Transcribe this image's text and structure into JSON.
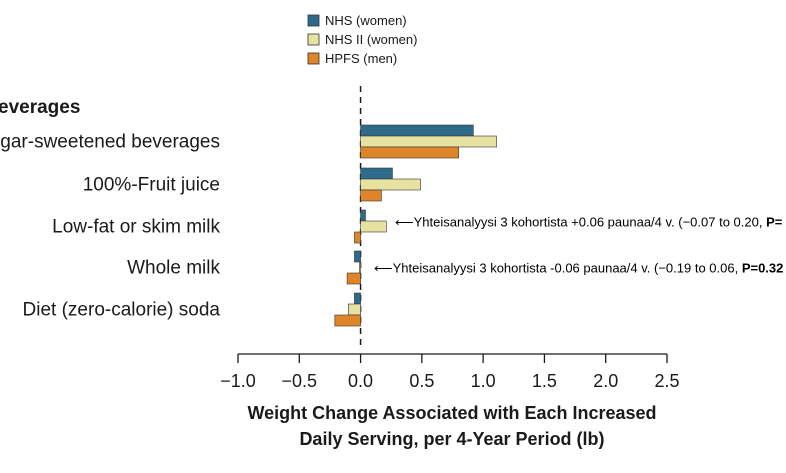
{
  "colors": {
    "nhs_women": "#2e6b8a",
    "nhs2_women": "#e8e2a2",
    "hpfs_men": "#e0842a",
    "axis": "#1a1a1a",
    "bar_stroke": "#333333"
  },
  "chart_data": {
    "type": "bar",
    "orientation": "horizontal",
    "section_label": "everages",
    "categories": [
      "ugar-sweetened beverages",
      "100%-Fruit juice",
      "Low-fat or skim milk",
      "Whole milk",
      "Diet (zero-calorie) soda"
    ],
    "series": [
      {
        "name": "NHS (women)",
        "color_key": "nhs_women",
        "values": [
          0.92,
          0.26,
          0.04,
          -0.05,
          -0.05
        ]
      },
      {
        "name": "NHS II (women)",
        "color_key": "nhs2_women",
        "values": [
          1.11,
          0.49,
          0.21,
          -0.01,
          -0.1
        ]
      },
      {
        "name": "HPFS (men)",
        "color_key": "hpfs_men",
        "values": [
          0.8,
          0.17,
          -0.05,
          -0.11,
          -0.21
        ]
      }
    ],
    "xlim": [
      -1.0,
      2.5
    ],
    "xticks": [
      "−1.0",
      "−0.5",
      "0.0",
      "0.5",
      "1.0",
      "1.5",
      "2.0",
      "2.5"
    ],
    "xlabel_lines": [
      "Weight Change Associated with Each Increased",
      "Daily Serving, per 4-Year Period (lb)"
    ],
    "legend_position": "top",
    "annotations": [
      {
        "category_index": 2,
        "text": "⟵Yhteisanalyysi 3 kohortista +0.06 paunaa/4 v. (−0.07 to 0.20, ",
        "bold_text": "P="
      },
      {
        "category_index": 3,
        "text": "⟵Yhteisanalyysi 3 kohortista -0.06 paunaa/4 v. (−0.19 to 0.06, ",
        "bold_text": "P=0.32"
      }
    ]
  }
}
